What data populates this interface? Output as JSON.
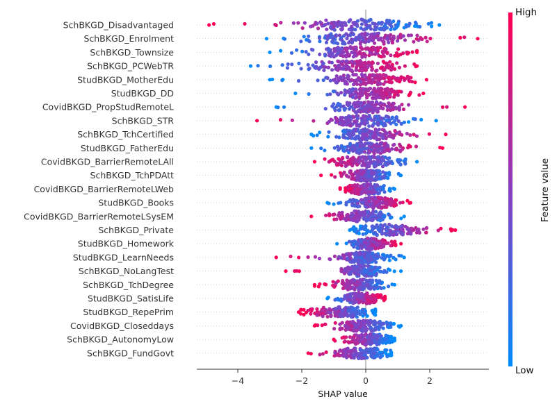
{
  "chart_data": {
    "type": "scatter",
    "subtype": "shap-beeswarm",
    "xlabel": "SHAP value",
    "xlim": [
      -5.3,
      4.0
    ],
    "xticks": [
      -4,
      -2,
      0,
      2
    ],
    "xtick_labels": [
      "−4",
      "−2",
      "0",
      "2"
    ],
    "colorbar": {
      "label": "Feature value",
      "high_label": "High",
      "low_label": "Low",
      "low_color": "#008bfb",
      "mid_color": "#8a3ebf",
      "high_color": "#ff0052"
    },
    "features": [
      {
        "name": "SchBKGD_Disadvantaged",
        "min": -4.9,
        "max": 2.3,
        "core_lo": -1.8,
        "core_hi": 1.3,
        "direction": "neg"
      },
      {
        "name": "SchBKGD_Enrolment",
        "min": -3.1,
        "max": 3.5,
        "core_lo": -1.6,
        "core_hi": 1.4,
        "direction": "pos"
      },
      {
        "name": "SchBKGD_Townsize",
        "min": -3.0,
        "max": 1.6,
        "core_lo": -1.5,
        "core_hi": 1.0,
        "direction": "pos"
      },
      {
        "name": "SchBKGD_PCWebTR",
        "min": -3.6,
        "max": 1.6,
        "core_lo": -1.6,
        "core_hi": 1.0,
        "direction": "pos"
      },
      {
        "name": "StudBKGD_MotherEdu",
        "min": -3.0,
        "max": 1.9,
        "core_lo": -0.9,
        "core_hi": 1.1,
        "direction": "pos"
      },
      {
        "name": "StudBKGD_DD",
        "min": -2.2,
        "max": 1.8,
        "core_lo": -0.6,
        "core_hi": 1.0,
        "direction": "pos"
      },
      {
        "name": "CovidBKGD_PropStudRemoteL",
        "min": -2.8,
        "max": 3.1,
        "core_lo": -0.8,
        "core_hi": 0.9,
        "direction": "pos"
      },
      {
        "name": "SchBKGD_STR",
        "min": -3.4,
        "max": 2.2,
        "core_lo": -0.9,
        "core_hi": 1.0,
        "direction": "neg"
      },
      {
        "name": "SchBKGD_TchCertified",
        "min": -1.7,
        "max": 2.5,
        "core_lo": -0.8,
        "core_hi": 0.9,
        "direction": "pos"
      },
      {
        "name": "StudBKGD_FatherEdu",
        "min": -1.7,
        "max": 2.4,
        "core_lo": -0.8,
        "core_hi": 1.0,
        "direction": "pos"
      },
      {
        "name": "CovidBKGD_BarrierRemoteLAll",
        "min": -1.6,
        "max": 1.6,
        "core_lo": -0.9,
        "core_hi": 0.9,
        "direction": "neg"
      },
      {
        "name": "SchBKGD_TchPDAtt",
        "min": -1.4,
        "max": 1.1,
        "core_lo": -0.6,
        "core_hi": 0.6,
        "direction": "neg"
      },
      {
        "name": "CovidBKGD_BarrierRemoteLWeb",
        "min": -0.8,
        "max": 0.9,
        "core_lo": -0.5,
        "core_hi": 0.5,
        "direction": "neg"
      },
      {
        "name": "StudBKGD_Books",
        "min": -1.2,
        "max": 1.4,
        "core_lo": -0.3,
        "core_hi": 0.9,
        "direction": "pos"
      },
      {
        "name": "CovidBKGD_BarrierRemoteLSysEM",
        "min": -1.7,
        "max": 1.2,
        "core_lo": -0.8,
        "core_hi": 0.6,
        "direction": "neg"
      },
      {
        "name": "SchBKGD_Private",
        "min": -0.5,
        "max": 2.8,
        "core_lo": -0.2,
        "core_hi": 1.6,
        "direction": "pos"
      },
      {
        "name": "StudBKGD_Homework",
        "min": -0.9,
        "max": 1.1,
        "core_lo": -0.4,
        "core_hi": 0.6,
        "direction": "pos"
      },
      {
        "name": "StudBKGD_LearnNeeds",
        "min": -2.8,
        "max": 1.2,
        "core_lo": -0.7,
        "core_hi": 0.6,
        "direction": "neg"
      },
      {
        "name": "SchBKGD_NoLangTest",
        "min": -2.5,
        "max": 1.1,
        "core_lo": -0.6,
        "core_hi": 0.4,
        "direction": "neg"
      },
      {
        "name": "SchBKGD_TchDegree",
        "min": -1.6,
        "max": 0.9,
        "core_lo": -0.9,
        "core_hi": 0.5,
        "direction": "neg"
      },
      {
        "name": "StudBKGD_SatisLife",
        "min": -1.2,
        "max": 0.6,
        "core_lo": -0.6,
        "core_hi": 0.4,
        "direction": "pos"
      },
      {
        "name": "StudBKGD_RepePrim",
        "min": -2.1,
        "max": 0.3,
        "core_lo": -1.6,
        "core_hi": 0.1,
        "direction": "neg"
      },
      {
        "name": "CovidBKGD_Closeddays",
        "min": -1.6,
        "max": 1.1,
        "core_lo": -0.8,
        "core_hi": 0.6,
        "direction": "neg"
      },
      {
        "name": "SchBKGD_AutonomyLow",
        "min": -1.0,
        "max": 0.9,
        "core_lo": -0.5,
        "core_hi": 0.7,
        "direction": "neg"
      },
      {
        "name": "SchBKGD_FundGovt",
        "min": -1.8,
        "max": 0.8,
        "core_lo": -0.8,
        "core_hi": 0.6,
        "direction": "neg"
      }
    ]
  }
}
